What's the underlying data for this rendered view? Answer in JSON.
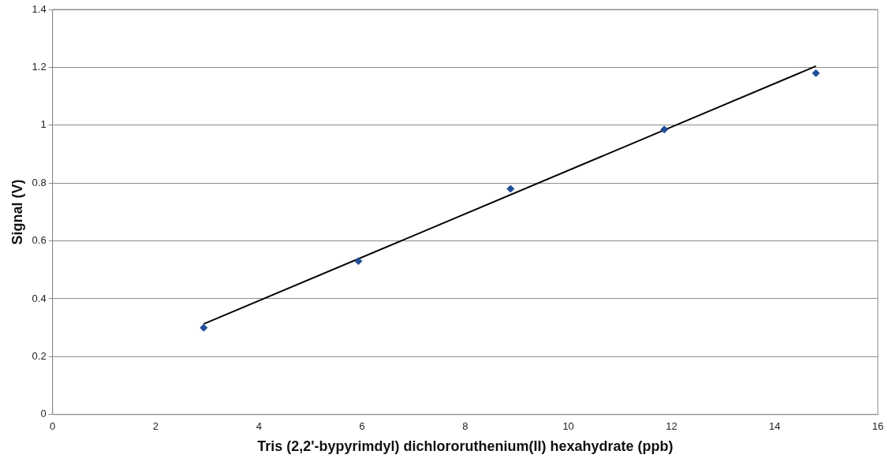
{
  "chart_data": {
    "type": "scatter",
    "xlabel": "Tris (2,2'-bypyrimdyl) dichlororuthenium(II) hexahydrate (ppb)",
    "ylabel": "Signal (V)",
    "series": [
      {
        "type": "scatter",
        "color": "#1f4e9a",
        "x": [
          2.93,
          5.93,
          8.88,
          11.86,
          14.8
        ],
        "values": [
          0.3,
          0.53,
          0.78,
          0.985,
          1.18
        ]
      },
      {
        "type": "line",
        "color": "#000000",
        "marker": "none",
        "x": [
          2.93,
          14.8
        ],
        "values": [
          0.313,
          1.204
        ]
      }
    ],
    "xlim": [
      0,
      16
    ],
    "xticks": [
      0,
      2,
      4,
      6,
      8,
      10,
      12,
      14,
      16
    ],
    "ylim": [
      0,
      1.4
    ],
    "yticks": [
      0,
      0.2,
      0.4,
      0.6,
      0.8,
      1,
      1.2,
      1.4
    ],
    "grid": "y",
    "legend": false,
    "marker": "diamond"
  }
}
